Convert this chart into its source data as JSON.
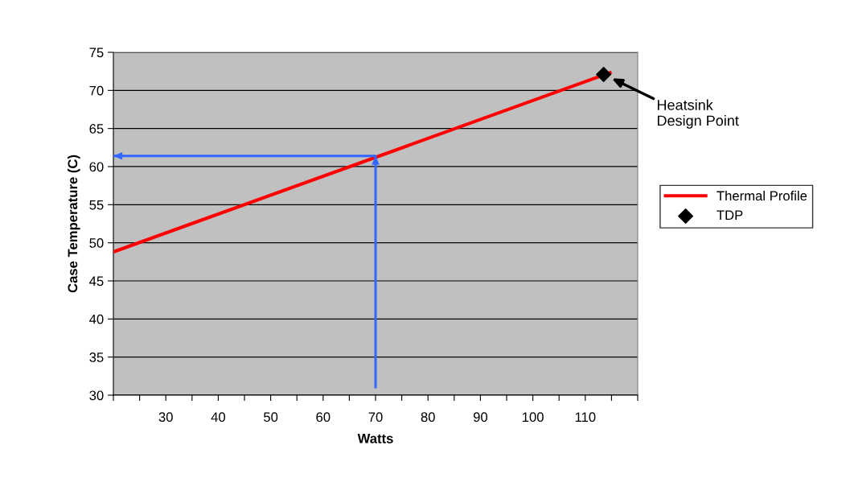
{
  "chart_data": {
    "type": "line",
    "xlabel": "Watts",
    "ylabel": "Case Temperature (C)",
    "series": [
      {
        "name": "Thermal Profile",
        "color": "#ff0000",
        "x": [
          20,
          115
        ],
        "values": [
          48.8,
          72.4
        ]
      },
      {
        "name": "TDP",
        "type": "scatter",
        "marker": "diamond",
        "color": "#000000",
        "x": [
          113.5
        ],
        "values": [
          72.1
        ]
      },
      {
        "type": "line",
        "color": "#3366ff",
        "x": [
          70,
          70,
          20
        ],
        "values": [
          30.9,
          61.4,
          61.4
        ]
      }
    ],
    "annotations": [
      "Heatsink\nDesign Point"
    ],
    "xlim": [
      20,
      120
    ],
    "xticks": [
      {
        "value": 20,
        "label": null
      },
      {
        "value": 25,
        "label": null
      },
      30,
      {
        "value": 35,
        "label": null
      },
      40,
      {
        "value": 45,
        "label": null
      },
      50,
      {
        "value": 55,
        "label": null
      },
      60,
      {
        "value": 65,
        "label": null
      },
      70,
      {
        "value": 75,
        "label": null
      },
      80,
      {
        "value": 85,
        "label": null
      },
      90,
      {
        "value": 95,
        "label": null
      },
      100,
      {
        "value": 105,
        "label": null
      },
      110,
      {
        "value": 115,
        "label": null
      },
      {
        "value": 120,
        "label": null
      }
    ],
    "ylim": [
      30,
      75
    ],
    "yticks": [
      30,
      35,
      40,
      45,
      50,
      55,
      60,
      65,
      70,
      75
    ],
    "grid": "y",
    "legend": "right"
  }
}
